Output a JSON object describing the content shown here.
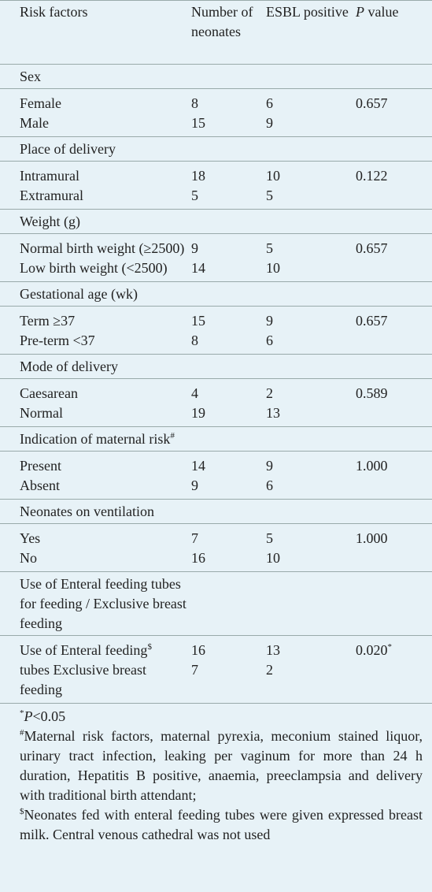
{
  "table": {
    "header": [
      "Risk factors",
      "Number of neonates",
      "ESBL positive",
      {
        "italic": "P",
        "text": "value"
      }
    ],
    "groups": [
      {
        "label": {
          "text": "Sex"
        },
        "items": [
          {
            "name": {
              "text": "Female"
            },
            "n": 8,
            "esbl": 6
          },
          {
            "name": {
              "text": "Male"
            },
            "n": 15,
            "esbl": 9
          }
        ],
        "p": {
          "text": "0.657"
        }
      },
      {
        "label": {
          "text": "Place of delivery"
        },
        "items": [
          {
            "name": {
              "text": "Intramural"
            },
            "n": 18,
            "esbl": 10
          },
          {
            "name": {
              "text": "Extramural"
            },
            "n": 5,
            "esbl": 5
          }
        ],
        "p": {
          "text": "0.122"
        }
      },
      {
        "label": {
          "text": "Weight (g)"
        },
        "items": [
          {
            "name": {
              "text": "Normal birth weight (≥2500)"
            },
            "n": 9,
            "esbl": 5
          },
          {
            "name": {
              "text": "Low birth weight (<2500)"
            },
            "n": 14,
            "esbl": 10
          }
        ],
        "p": {
          "text": "0.657"
        }
      },
      {
        "label": {
          "text": "Gestational age (wk)"
        },
        "items": [
          {
            "name": {
              "text": "Term ≥37"
            },
            "n": 15,
            "esbl": 9
          },
          {
            "name": {
              "text": "Pre-term <37"
            },
            "n": 8,
            "esbl": 6
          }
        ],
        "p": {
          "text": "0.657"
        }
      },
      {
        "label": {
          "text": "Mode of delivery"
        },
        "items": [
          {
            "name": {
              "text": "Caesarean"
            },
            "n": 4,
            "esbl": 2
          },
          {
            "name": {
              "text": "Normal"
            },
            "n": 19,
            "esbl": 13
          }
        ],
        "p": {
          "text": "0.589"
        }
      },
      {
        "label": {
          "text": "Indication of maternal risk",
          "sup": "#"
        },
        "items": [
          {
            "name": {
              "text": "Present"
            },
            "n": 14,
            "esbl": 9
          },
          {
            "name": {
              "text": "Absent"
            },
            "n": 9,
            "esbl": 6
          }
        ],
        "p": {
          "text": "1.000"
        }
      },
      {
        "label": {
          "text": "Neonates on ventilation"
        },
        "items": [
          {
            "name": {
              "text": "Yes"
            },
            "n": 7,
            "esbl": 5
          },
          {
            "name": {
              "text": "No"
            },
            "n": 16,
            "esbl": 10
          }
        ],
        "p": {
          "text": "1.000"
        }
      },
      {
        "label": {
          "text": "Use of Enteral feeding tubes for feeding / Exclusive breast feeding"
        },
        "items": [
          {
            "name": {
              "text": "Use of Enteral feeding",
              "sup": "$"
            },
            "n": 16,
            "esbl": 13
          },
          {
            "name": {
              "text": "tubes Exclusive breast feeding"
            },
            "n": 7,
            "esbl": 2
          }
        ],
        "p": {
          "text": "0.020",
          "sup": "*"
        }
      }
    ]
  },
  "footnotes": [
    {
      "sup": "*",
      "italic": "P",
      "text": "<0.05"
    },
    {
      "sup": "#",
      "text": "Maternal risk factors, maternal pyrexia, meconium stained liquor, urinary tract infection, leaking per vaginum for more than 24 h duration, Hepatitis B positive, anaemia, preeclampsia and delivery with traditional birth attendant;"
    },
    {
      "sup": "$",
      "text": "Neonates fed with enteral feeding tubes were given expressed breast milk. Central venous cathedral was not used"
    }
  ]
}
